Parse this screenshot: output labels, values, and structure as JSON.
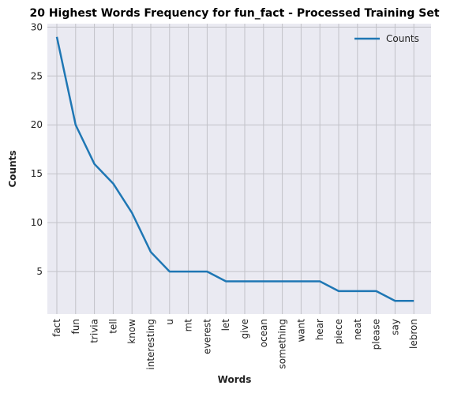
{
  "chart_data": {
    "type": "line",
    "title": "20 Highest Words Frequency for fun_fact - Processed Training Set",
    "xlabel": "Words",
    "ylabel": "Counts",
    "categories": [
      "fact",
      "fun",
      "trivia",
      "tell",
      "know",
      "interesting",
      "u",
      "mt",
      "everest",
      "let",
      "give",
      "ocean",
      "something",
      "want",
      "hear",
      "piece",
      "neat",
      "please",
      "say",
      "lebron"
    ],
    "series": [
      {
        "name": "Counts",
        "values": [
          29,
          20,
          16,
          14,
          11,
          7,
          5,
          5,
          5,
          4,
          4,
          4,
          4,
          4,
          4,
          3,
          3,
          3,
          2,
          2
        ],
        "color": "#1f77b4"
      }
    ],
    "yticks": [
      5,
      10,
      15,
      20,
      25,
      30
    ],
    "ylim": [
      0.65,
      30.35
    ],
    "grid": true,
    "legend_position": "top-right",
    "background": "#eaeaf2"
  }
}
